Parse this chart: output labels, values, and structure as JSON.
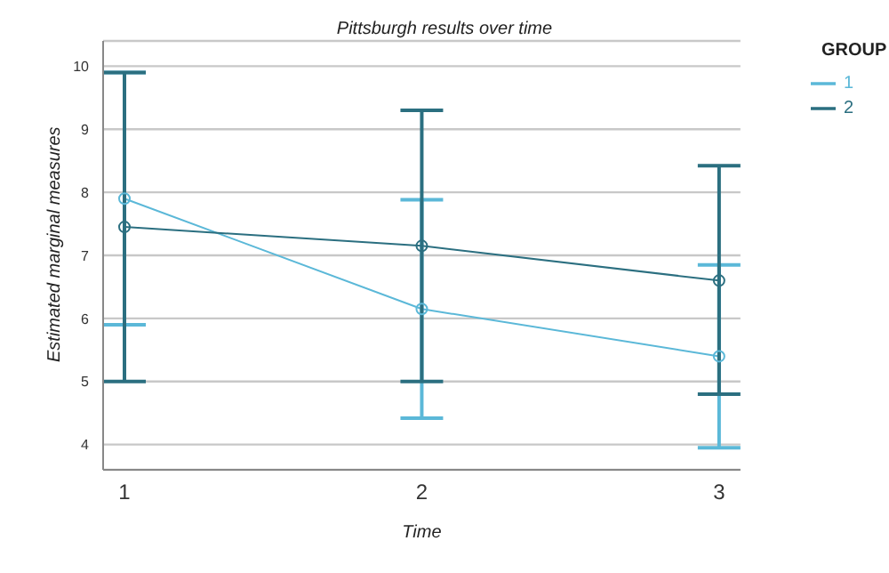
{
  "chart_data": {
    "type": "line",
    "title": "Pittsburgh results over time",
    "xlabel": "Time",
    "ylabel": "Estimated marginal measures",
    "legend_title": "GROUP",
    "categories": [
      "1",
      "2",
      "3"
    ],
    "series": [
      {
        "name": "1",
        "color": "#5bb8d8",
        "values": [
          7.9,
          6.15,
          5.4
        ],
        "errors": [
          [
            5.9,
            9.9
          ],
          [
            4.42,
            7.88
          ],
          [
            3.95,
            6.85
          ]
        ]
      },
      {
        "name": "2",
        "color": "#2b6f80",
        "values": [
          7.45,
          7.15,
          6.6
        ],
        "errors": [
          [
            5.0,
            9.9
          ],
          [
            5.0,
            9.3
          ],
          [
            4.8,
            8.42
          ]
        ]
      }
    ],
    "ylim": [
      3.6,
      10.4
    ],
    "yticks": [
      4,
      5,
      6,
      7,
      8,
      9,
      10
    ],
    "grid": "y",
    "legend": "top right",
    "marker": "circle",
    "line_style": "solid"
  }
}
